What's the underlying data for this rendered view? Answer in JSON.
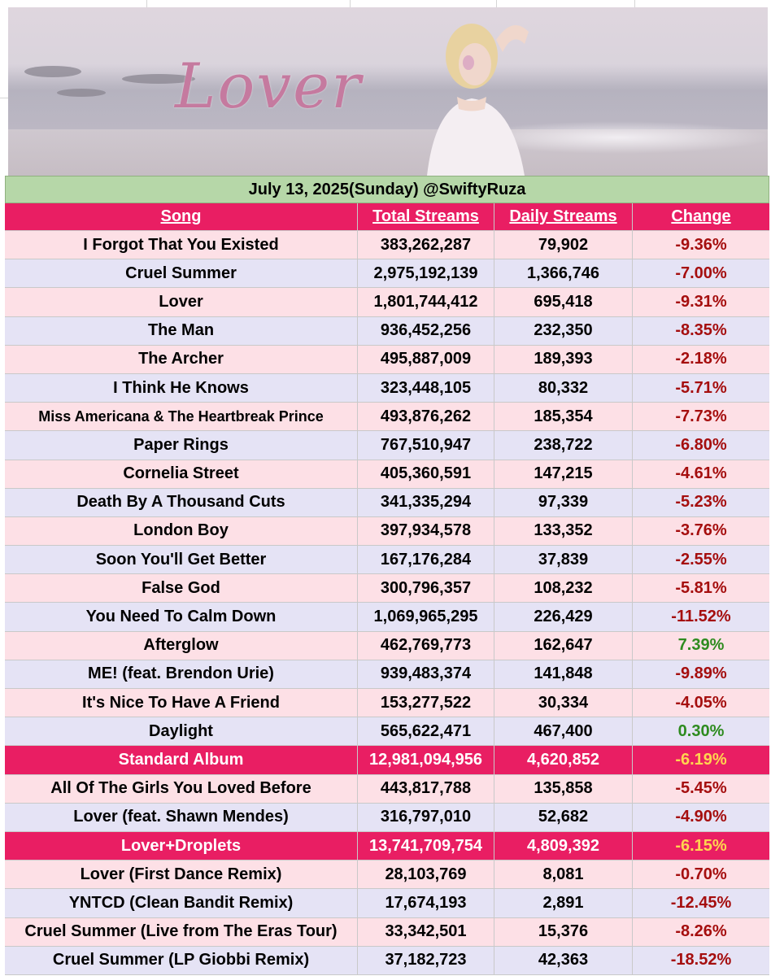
{
  "header": {
    "date_line": "July 13, 2025(Sunday) @SwiftyRuza",
    "banner_script_text": "Lover"
  },
  "columns": {
    "song": "Song",
    "total": "Total Streams",
    "daily": "Daily Streams",
    "change": "Change"
  },
  "rows": [
    {
      "song": "I Forgot That You Existed",
      "total": "383,262,287",
      "daily": "79,902",
      "change": "-9.36%",
      "trend": "neg",
      "kind": "pink"
    },
    {
      "song": "Cruel Summer",
      "total": "2,975,192,139",
      "daily": "1,366,746",
      "change": "-7.00%",
      "trend": "neg",
      "kind": "lav"
    },
    {
      "song": "Lover",
      "total": "1,801,744,412",
      "daily": "695,418",
      "change": "-9.31%",
      "trend": "neg",
      "kind": "pink"
    },
    {
      "song": "The Man",
      "total": "936,452,256",
      "daily": "232,350",
      "change": "-8.35%",
      "trend": "neg",
      "kind": "lav"
    },
    {
      "song": "The Archer",
      "total": "495,887,009",
      "daily": "189,393",
      "change": "-2.18%",
      "trend": "neg",
      "kind": "pink"
    },
    {
      "song": "I Think He Knows",
      "total": "323,448,105",
      "daily": "80,332",
      "change": "-5.71%",
      "trend": "neg",
      "kind": "lav"
    },
    {
      "song": "Miss Americana & The Heartbreak Prince",
      "total": "493,876,262",
      "daily": "185,354",
      "change": "-7.73%",
      "trend": "neg",
      "kind": "pink",
      "small": true
    },
    {
      "song": "Paper Rings",
      "total": "767,510,947",
      "daily": "238,722",
      "change": "-6.80%",
      "trend": "neg",
      "kind": "lav"
    },
    {
      "song": "Cornelia Street",
      "total": "405,360,591",
      "daily": "147,215",
      "change": "-4.61%",
      "trend": "neg",
      "kind": "pink"
    },
    {
      "song": "Death By A Thousand Cuts",
      "total": "341,335,294",
      "daily": "97,339",
      "change": "-5.23%",
      "trend": "neg",
      "kind": "lav"
    },
    {
      "song": "London Boy",
      "total": "397,934,578",
      "daily": "133,352",
      "change": "-3.76%",
      "trend": "neg",
      "kind": "pink"
    },
    {
      "song": "Soon You'll Get Better",
      "total": "167,176,284",
      "daily": "37,839",
      "change": "-2.55%",
      "trend": "neg",
      "kind": "lav"
    },
    {
      "song": "False God",
      "total": "300,796,357",
      "daily": "108,232",
      "change": "-5.81%",
      "trend": "neg",
      "kind": "pink"
    },
    {
      "song": "You Need To Calm Down",
      "total": "1,069,965,295",
      "daily": "226,429",
      "change": "-11.52%",
      "trend": "neg",
      "kind": "lav"
    },
    {
      "song": "Afterglow",
      "total": "462,769,773",
      "daily": "162,647",
      "change": "7.39%",
      "trend": "pos",
      "kind": "pink"
    },
    {
      "song": "ME! (feat. Brendon Urie)",
      "total": "939,483,374",
      "daily": "141,848",
      "change": "-9.89%",
      "trend": "neg",
      "kind": "lav"
    },
    {
      "song": "It's Nice To Have A Friend",
      "total": "153,277,522",
      "daily": "30,334",
      "change": "-4.05%",
      "trend": "neg",
      "kind": "pink"
    },
    {
      "song": "Daylight",
      "total": "565,622,471",
      "daily": "467,400",
      "change": "0.30%",
      "trend": "pos",
      "kind": "lav"
    },
    {
      "song": "Standard Album",
      "total": "12,981,094,956",
      "daily": "4,620,852",
      "change": "-6.19%",
      "trend": "summary",
      "kind": "summary"
    },
    {
      "song": "All Of The Girls You Loved Before",
      "total": "443,817,788",
      "daily": "135,858",
      "change": "-5.45%",
      "trend": "neg",
      "kind": "pink"
    },
    {
      "song": "Lover (feat. Shawn Mendes)",
      "total": "316,797,010",
      "daily": "52,682",
      "change": "-4.90%",
      "trend": "neg",
      "kind": "lav"
    },
    {
      "song": "Lover+Droplets",
      "total": "13,741,709,754",
      "daily": "4,809,392",
      "change": "-6.15%",
      "trend": "summary",
      "kind": "summary"
    },
    {
      "song": "Lover (First Dance Remix)",
      "total": "28,103,769",
      "daily": "8,081",
      "change": "-0.70%",
      "trend": "neg",
      "kind": "pink"
    },
    {
      "song": "YNTCD (Clean Bandit Remix)",
      "total": "17,674,193",
      "daily": "2,891",
      "change": "-12.45%",
      "trend": "neg",
      "kind": "lav"
    },
    {
      "song": "Cruel Summer (Live from The Eras Tour)",
      "total": "33,342,501",
      "daily": "15,376",
      "change": "-8.26%",
      "trend": "neg",
      "kind": "pink"
    },
    {
      "song": "Cruel Summer (LP Giobbi Remix)",
      "total": "37,182,723",
      "daily": "42,363",
      "change": "-18.52%",
      "trend": "neg",
      "kind": "lav"
    }
  ]
}
